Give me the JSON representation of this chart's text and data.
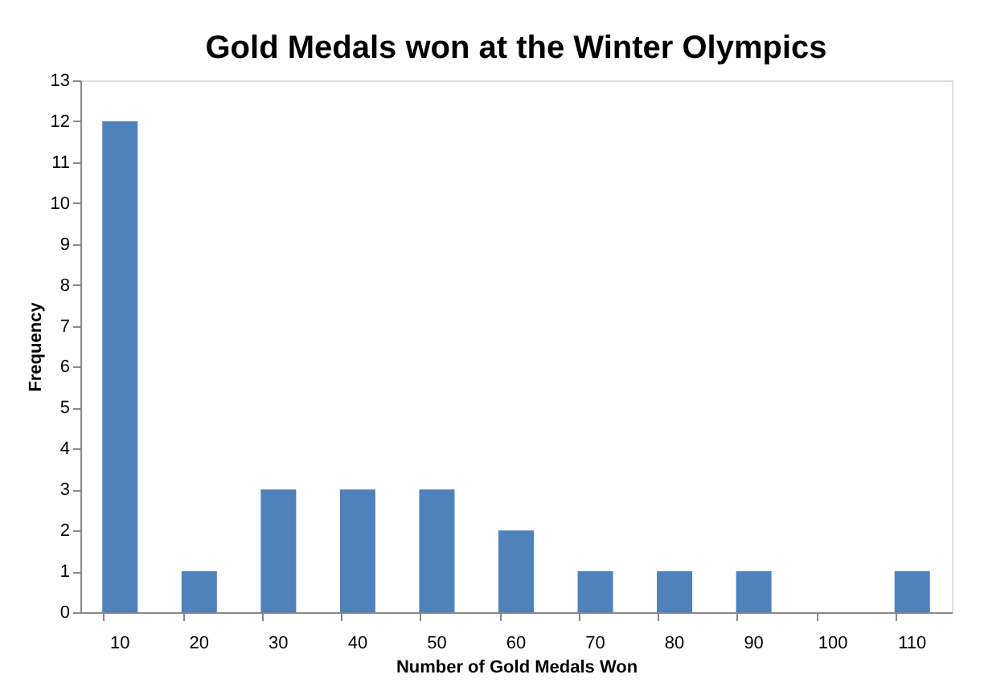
{
  "chart_data": {
    "type": "bar",
    "title": "Gold Medals won at the Winter Olympics",
    "xlabel": "Number of Gold Medals Won",
    "ylabel": "Frequency",
    "categories": [
      "10",
      "20",
      "30",
      "40",
      "50",
      "60",
      "70",
      "80",
      "90",
      "100",
      "110"
    ],
    "values": [
      12,
      1,
      3,
      3,
      3,
      2,
      1,
      1,
      1,
      0,
      1
    ],
    "color": "#4f81bd",
    "ylim": [
      0,
      13
    ],
    "yticks": [
      0,
      1,
      2,
      3,
      4,
      5,
      6,
      7,
      8,
      9,
      10,
      11,
      12,
      13
    ],
    "grid": false
  }
}
